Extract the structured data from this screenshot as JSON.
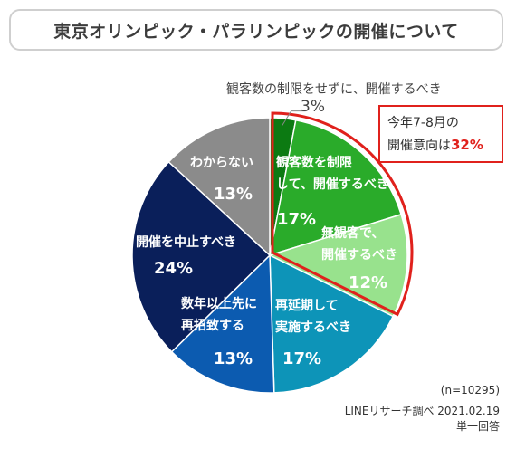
{
  "title": "東京オリンピック・パラリンピックの開催について",
  "chart_data": {
    "type": "pie",
    "start_angle_deg": 0,
    "direction": "clockwise",
    "slices": [
      {
        "label": "観客数の制限をせずに、開催するべき",
        "value": 3,
        "pct_text": "3%",
        "color": "#0c7a12"
      },
      {
        "label_lines": [
          "観客数を制限",
          "して、開催するべき"
        ],
        "value": 17,
        "pct_text": "17%",
        "color": "#2aab2a"
      },
      {
        "label_lines": [
          "無観客で、",
          "開催するべき"
        ],
        "value": 12,
        "pct_text": "12%",
        "color": "#98e28d"
      },
      {
        "label_lines": [
          "再延期して",
          "実施するべき"
        ],
        "value": 17,
        "pct_text": "17%",
        "color": "#0d94b8"
      },
      {
        "label_lines": [
          "数年以上先に",
          "再招致する"
        ],
        "value": 13,
        "pct_text": "13%",
        "color": "#0c5bb0"
      },
      {
        "label_lines": [
          "開催を中止すべき"
        ],
        "value": 24,
        "pct_text": "24%",
        "color": "#0a1f5a"
      },
      {
        "label_lines": [
          "わからない"
        ],
        "value": 13,
        "pct_text": "13%",
        "color": "#8b8b8b"
      }
    ],
    "highlight": {
      "text_prefix": "今年7-8月の",
      "text_line2": "開催意向は",
      "value_text": "32%",
      "color": "#e0211c"
    }
  },
  "notes": {
    "n": "(n=10295)",
    "source": "LINEリサーチ調べ 2021.02.19",
    "answer_type": "単一回答"
  }
}
